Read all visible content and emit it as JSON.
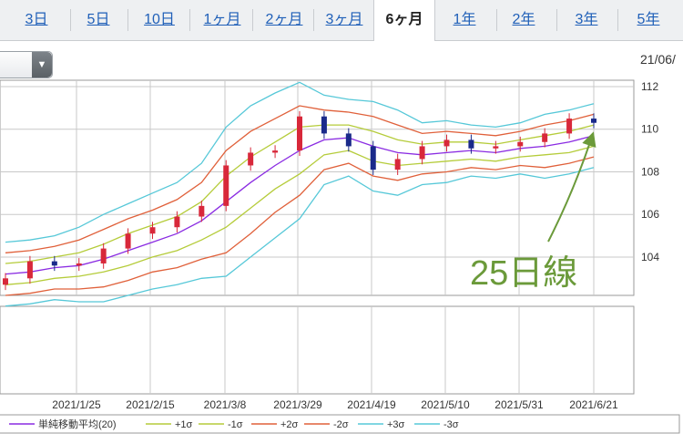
{
  "tabs": [
    {
      "label": "3日"
    },
    {
      "label": "5日"
    },
    {
      "label": "10日"
    },
    {
      "label": "1ヶ月"
    },
    {
      "label": "2ヶ月"
    },
    {
      "label": "3ヶ月"
    },
    {
      "label": "6ヶ月"
    },
    {
      "label": "1年"
    },
    {
      "label": "2年"
    },
    {
      "label": "3年"
    },
    {
      "label": "5年"
    }
  ],
  "active_tab": "6ヶ月",
  "date_label": "21/06/",
  "annotation": "25日線",
  "colors": {
    "up": "#d8283a",
    "down": "#1a2a8a",
    "sma": "#8a2be2",
    "sigma1": "#b5cc3a",
    "sigma2": "#e0603a",
    "sigma3": "#56c8d8",
    "annotation": "#6b9a3a",
    "grid": "#c8c8c8"
  },
  "chart_data": {
    "type": "line",
    "title": "",
    "y_ticks": [
      104,
      106,
      108,
      110,
      112
    ],
    "ylim": [
      102.2,
      112.3
    ],
    "x_tick_labels": [
      "2021/1/25",
      "2021/2/15",
      "2021/3/8",
      "2021/3/29",
      "2021/4/19",
      "2021/5/10",
      "2021/5/31",
      "2021/6/21"
    ],
    "legend": [
      {
        "name": "単純移動平均(20)",
        "color": "#8a2be2"
      },
      {
        "name": "+1σ",
        "color": "#b5cc3a"
      },
      {
        "name": "-1σ",
        "color": "#b5cc3a"
      },
      {
        "name": "+2σ",
        "color": "#e0603a"
      },
      {
        "name": "-2σ",
        "color": "#e0603a"
      },
      {
        "name": "+3σ",
        "color": "#56c8d8"
      },
      {
        "name": "-3σ",
        "color": "#56c8d8"
      }
    ],
    "x": [
      "2021/1/4",
      "2021/1/11",
      "2021/1/18",
      "2021/1/25",
      "2021/2/1",
      "2021/2/8",
      "2021/2/15",
      "2021/2/22",
      "2021/3/1",
      "2021/3/8",
      "2021/3/15",
      "2021/3/22",
      "2021/3/29",
      "2021/4/5",
      "2021/4/12",
      "2021/4/19",
      "2021/4/26",
      "2021/5/3",
      "2021/5/10",
      "2021/5/17",
      "2021/5/24",
      "2021/5/31",
      "2021/6/7",
      "2021/6/14",
      "2021/6/21"
    ],
    "series": [
      {
        "name": "単純移動平均(20)",
        "values": [
          103.2,
          103.3,
          103.5,
          103.6,
          103.9,
          104.3,
          104.7,
          105.1,
          105.7,
          106.6,
          107.5,
          108.3,
          109.0,
          109.5,
          109.6,
          109.2,
          108.9,
          108.8,
          108.9,
          109.0,
          108.9,
          109.1,
          109.2,
          109.4,
          109.7
        ]
      },
      {
        "name": "+1σ",
        "values": [
          103.7,
          103.8,
          104.0,
          104.2,
          104.6,
          105.1,
          105.5,
          105.9,
          106.6,
          107.8,
          108.7,
          109.4,
          110.1,
          110.2,
          110.2,
          109.9,
          109.5,
          109.3,
          109.4,
          109.4,
          109.3,
          109.5,
          109.7,
          109.9,
          110.2
        ]
      },
      {
        "name": "-1σ",
        "values": [
          102.7,
          102.8,
          103.0,
          103.1,
          103.3,
          103.6,
          104.0,
          104.3,
          104.8,
          105.4,
          106.3,
          107.2,
          107.9,
          108.8,
          109.0,
          108.5,
          108.3,
          108.4,
          108.5,
          108.6,
          108.5,
          108.7,
          108.8,
          108.9,
          109.2
        ]
      },
      {
        "name": "+2σ",
        "values": [
          104.2,
          104.3,
          104.5,
          104.8,
          105.3,
          105.8,
          106.2,
          106.7,
          107.5,
          109.0,
          109.9,
          110.5,
          111.1,
          110.9,
          110.8,
          110.6,
          110.2,
          109.8,
          109.9,
          109.8,
          109.7,
          109.9,
          110.2,
          110.4,
          110.7
        ]
      },
      {
        "name": "-2σ",
        "values": [
          102.2,
          102.3,
          102.5,
          102.5,
          102.6,
          102.9,
          103.3,
          103.5,
          103.9,
          104.2,
          105.1,
          106.1,
          106.9,
          108.1,
          108.4,
          107.8,
          107.6,
          107.9,
          108.0,
          108.2,
          108.1,
          108.3,
          108.2,
          108.4,
          108.7
        ]
      },
      {
        "name": "+3σ",
        "values": [
          104.7,
          104.8,
          105.0,
          105.4,
          106.0,
          106.5,
          107.0,
          107.5,
          108.4,
          110.1,
          111.1,
          111.7,
          112.2,
          111.6,
          111.4,
          111.3,
          110.9,
          110.3,
          110.4,
          110.2,
          110.1,
          110.3,
          110.7,
          110.9,
          111.2
        ]
      },
      {
        "name": "-3σ",
        "values": [
          101.7,
          101.8,
          102.0,
          101.9,
          101.9,
          102.2,
          102.5,
          102.7,
          103.0,
          103.1,
          104.0,
          104.9,
          105.8,
          107.4,
          107.8,
          107.1,
          106.9,
          107.4,
          107.5,
          107.8,
          107.7,
          107.9,
          107.7,
          107.9,
          108.2
        ]
      },
      {
        "name": "close",
        "values": [
          103.0,
          103.8,
          103.6,
          103.7,
          104.4,
          105.1,
          105.4,
          105.9,
          106.4,
          108.3,
          108.9,
          109.0,
          110.6,
          109.8,
          109.2,
          108.1,
          108.6,
          109.2,
          109.5,
          109.1,
          109.2,
          109.4,
          109.8,
          110.5,
          110.3
        ]
      }
    ]
  }
}
